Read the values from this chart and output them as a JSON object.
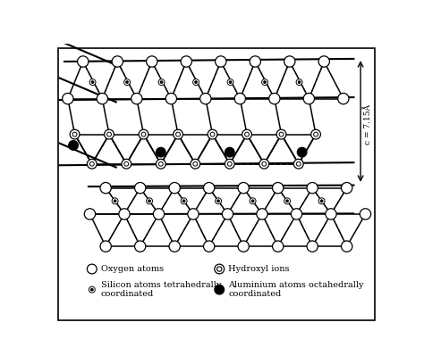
{
  "background_color": "#ffffff",
  "legend": {
    "oxygen_label": "Oxygen atoms",
    "hydroxyl_label": "Hydroxyl ions",
    "silicon_label": "Silicon atoms tetrahedrally\ncoordinated",
    "aluminium_label": "Aluminium atoms octahedrally\ncoordinated"
  },
  "dimension_label": "c = 7.15Å",
  "figsize": [
    4.74,
    4.08
  ],
  "dpi": 100
}
